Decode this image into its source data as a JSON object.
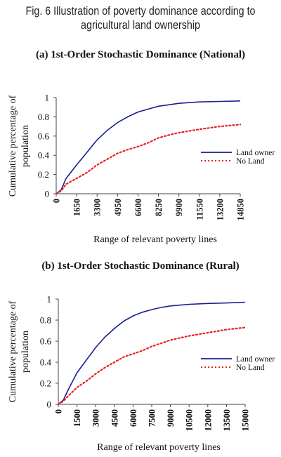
{
  "figure": {
    "title_line1": "Fig. 6 Illustration of poverty dominance according to",
    "title_line2": "agricultural land ownership"
  },
  "colors": {
    "land_owner": "#1a1f8f",
    "no_land": "#e82020"
  },
  "chart_data": [
    {
      "type": "line",
      "title": "(a) 1st-Order Stochastic Dominance (National)",
      "xlabel": "Range of relevant poverty lines",
      "ylabel": "Cumulative percentage of population",
      "xlim": [
        0,
        14850
      ],
      "ylim": [
        0,
        1
      ],
      "x_ticks": [
        "0",
        "1650",
        "3300",
        "4950",
        "6600",
        "8250",
        "9900",
        "11550",
        "13200",
        "14850"
      ],
      "y_ticks": [
        "0",
        "0.2",
        "0.4",
        "0.6",
        "0.8",
        "1"
      ],
      "legend_position": "right",
      "series": [
        {
          "name": "Land owner",
          "style": "solid",
          "x": [
            0,
            400,
            800,
            1650,
            2475,
            3300,
            4125,
            4950,
            5775,
            6600,
            7425,
            8250,
            9075,
            9900,
            11550,
            13200,
            14850
          ],
          "y": [
            0,
            0.04,
            0.16,
            0.3,
            0.43,
            0.56,
            0.66,
            0.74,
            0.8,
            0.85,
            0.88,
            0.91,
            0.925,
            0.94,
            0.955,
            0.96,
            0.965
          ]
        },
        {
          "name": "No Land",
          "style": "dotted",
          "x": [
            0,
            400,
            800,
            1650,
            2475,
            3300,
            4125,
            4950,
            5775,
            6600,
            7425,
            8250,
            9075,
            9900,
            11550,
            13200,
            14850
          ],
          "y": [
            0,
            0.03,
            0.1,
            0.16,
            0.22,
            0.3,
            0.36,
            0.42,
            0.46,
            0.49,
            0.53,
            0.58,
            0.61,
            0.635,
            0.67,
            0.7,
            0.72
          ]
        }
      ]
    },
    {
      "type": "line",
      "title": "(b) 1st-Order Stochastic Dominance (Rural)",
      "xlabel": "Range of relevant poverty lines",
      "ylabel": "Cumulative percentage of population",
      "xlim": [
        0,
        15000
      ],
      "ylim": [
        0,
        1
      ],
      "x_ticks": [
        "0",
        "1500",
        "3000",
        "4500",
        "6000",
        "7500",
        "9000",
        "10500",
        "12000",
        "13500",
        "15000"
      ],
      "y_ticks": [
        "0",
        "0.2",
        "0.4",
        "0.6",
        "0.8",
        "1"
      ],
      "legend_position": "right",
      "series": [
        {
          "name": "Land owner",
          "style": "solid",
          "x": [
            0,
            400,
            800,
            1500,
            2250,
            3000,
            3750,
            4500,
            5250,
            6000,
            6750,
            7500,
            8250,
            9000,
            10500,
            12000,
            13500,
            15000
          ],
          "y": [
            0,
            0.04,
            0.14,
            0.3,
            0.42,
            0.54,
            0.64,
            0.72,
            0.79,
            0.84,
            0.875,
            0.9,
            0.92,
            0.935,
            0.95,
            0.958,
            0.963,
            0.97
          ]
        },
        {
          "name": "No Land",
          "style": "dotted",
          "x": [
            0,
            400,
            800,
            1500,
            2250,
            3000,
            3750,
            4500,
            5250,
            6000,
            6750,
            7500,
            8250,
            9000,
            10500,
            12000,
            13500,
            15000
          ],
          "y": [
            0,
            0.03,
            0.08,
            0.16,
            0.22,
            0.29,
            0.35,
            0.4,
            0.45,
            0.48,
            0.51,
            0.55,
            0.58,
            0.61,
            0.65,
            0.68,
            0.71,
            0.73
          ]
        }
      ]
    }
  ]
}
